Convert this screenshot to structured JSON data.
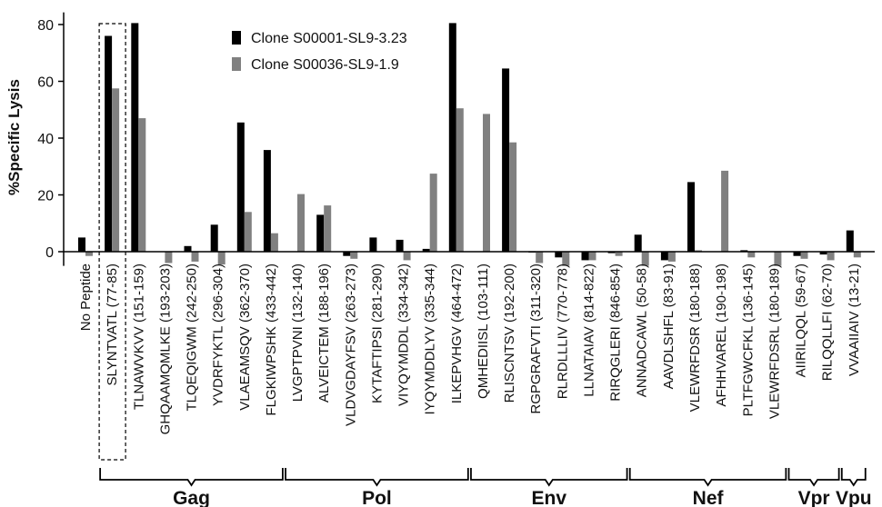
{
  "chart_data": {
    "type": "bar",
    "ylabel": "%Specific Lysis",
    "ylim": [
      -5,
      83
    ],
    "yticks": [
      0,
      20,
      40,
      60,
      80
    ],
    "legend_position": "top-left",
    "categories": [
      "No Peptide",
      "SLYNTVATL (77-85)",
      "TLNAWVKVV (151-159)",
      "GHQAAMQMLKE (193-203)",
      "TLQEQIGWM (242-250)",
      "YVDRFYKTL (296-304)",
      "VLAEAMSQV (362-370)",
      "FLGKIWPSHK (433-442)",
      "LVGPTPVNI (132-140)",
      "ALVEICTEM (188-196)",
      "VLDVGDAYFSV (263-273)",
      "KYTAFTIPSI (281-290)",
      "VIYQYMDDL (334-342)",
      "IYQYMDDLYV (335-344)",
      "ILKEPVHGV (464-472)",
      "QMHEDIISL (103-111)",
      "RLISCNTSV (192-200)",
      "RGPGRAFVTI (311-320)",
      "RLRDLLLIV (770-778)",
      "LLNATAIAV (814-822)",
      "RIRQGLERI (846-854)",
      "ANNADCAWL (50-58)",
      "AAVDLSHFL (83-91)",
      "VLEWRFDSR (180-188)",
      "AFHHVAREL (190-198)",
      "PLTFGWCFKL (136-145)",
      "VLEWRFDSRL (180-189)",
      "AIIRILQQL (59-67)",
      "RILQQLLFI (62-70)",
      "VVAAIIAIV (13-21)"
    ],
    "series": [
      {
        "name": "Clone S00001-SL9-3.23",
        "color": "#000000",
        "values": [
          5,
          76,
          80.5,
          0,
          2,
          9.5,
          45.5,
          35.8,
          0,
          13,
          -1.5,
          5,
          4.2,
          1,
          80.5,
          0,
          64.5,
          -0.3,
          -2,
          -3,
          -0.5,
          6,
          -3,
          24.5,
          0,
          0.5,
          0,
          -1.5,
          -1,
          7.5
        ]
      },
      {
        "name": "Clone S00036-SL9-1.9",
        "color": "#808080",
        "values": [
          -1.5,
          57.5,
          47,
          -4,
          -3.5,
          -4.5,
          14,
          6.5,
          20.3,
          16.3,
          -2.5,
          0,
          -3,
          27.5,
          50.5,
          48.5,
          38.5,
          -4,
          -5,
          -3,
          -1.5,
          -5,
          -3.5,
          0.5,
          28.5,
          -2,
          -5,
          -2.5,
          -3,
          -2
        ]
      }
    ],
    "groups": [
      {
        "label": "Gag",
        "from": 1,
        "to": 7
      },
      {
        "label": "Pol",
        "from": 8,
        "to": 14
      },
      {
        "label": "Env",
        "from": 15,
        "to": 20
      },
      {
        "label": "Nef",
        "from": 21,
        "to": 26
      },
      {
        "label": "Vpr",
        "from": 27,
        "to": 28
      },
      {
        "label": "Vpu",
        "from": 29,
        "to": 29
      }
    ],
    "highlighted_category": 1
  }
}
